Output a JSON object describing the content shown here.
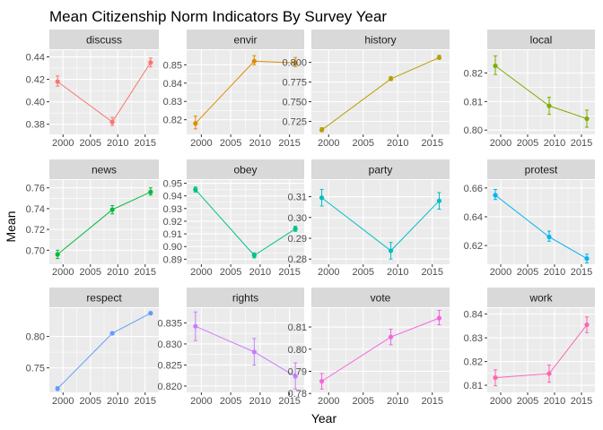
{
  "chart_data": {
    "type": "line",
    "title": "Mean Citizenship Norm Indicators By Survey Year",
    "xlabel": "Year",
    "ylabel": "Mean",
    "x": [
      1999,
      2009,
      2016
    ],
    "xlim": [
      1997.5,
      2017.5
    ],
    "xticks": [
      2000,
      2005,
      2010,
      2015
    ],
    "grid": true,
    "legend": "none",
    "panels": [
      {
        "name": "discuss",
        "color": "#F8766D",
        "ylim": [
          0.371,
          0.446
        ],
        "yticks": [
          0.38,
          0.4,
          0.42,
          0.44
        ],
        "ytick_labels": [
          "0.38",
          "0.40",
          "0.42",
          "0.44"
        ],
        "values": [
          0.418,
          0.382,
          0.435
        ],
        "lower": [
          0.414,
          0.379,
          0.431
        ],
        "upper": [
          0.423,
          0.386,
          0.439
        ]
      },
      {
        "name": "envir",
        "color": "#DE8C00",
        "ylim": [
          0.812,
          0.858
        ],
        "yticks": [
          0.82,
          0.83,
          0.84,
          0.85
        ],
        "ytick_labels": [
          "0.82",
          "0.83",
          "0.84",
          "0.85"
        ],
        "values": [
          0.818,
          0.852,
          0.851
        ],
        "lower": [
          0.815,
          0.85,
          0.849
        ],
        "upper": [
          0.822,
          0.855,
          0.854
        ]
      },
      {
        "name": "history",
        "color": "#B79F00",
        "ylim": [
          0.7085,
          0.8155
        ],
        "yticks": [
          0.725,
          0.75,
          0.775,
          0.8
        ],
        "ytick_labels": [
          "0.725",
          "0.750",
          "0.775",
          "0.800"
        ],
        "values": [
          0.714,
          0.779,
          0.806
        ],
        "lower": [
          0.712,
          0.777,
          0.804
        ],
        "upper": [
          0.717,
          0.782,
          0.809
        ]
      },
      {
        "name": "local",
        "color": "#7CAE00",
        "ylim": [
          0.7985,
          0.828
        ],
        "yticks": [
          0.8,
          0.81,
          0.82
        ],
        "ytick_labels": [
          "0.80",
          "0.81",
          "0.82"
        ],
        "values": [
          0.8225,
          0.8085,
          0.804
        ],
        "lower": [
          0.8195,
          0.8055,
          0.801
        ],
        "upper": [
          0.826,
          0.8115,
          0.807
        ]
      },
      {
        "name": "news",
        "color": "#00BA38",
        "ylim": [
          0.6865,
          0.7675
        ],
        "yticks": [
          0.7,
          0.72,
          0.74,
          0.76
        ],
        "ytick_labels": [
          "0.70",
          "0.72",
          "0.74",
          "0.76"
        ],
        "values": [
          0.696,
          0.739,
          0.756
        ],
        "lower": [
          0.692,
          0.735,
          0.753
        ],
        "upper": [
          0.7,
          0.743,
          0.76
        ]
      },
      {
        "name": "obey",
        "color": "#00C08B",
        "ylim": [
          0.886,
          0.9525
        ],
        "yticks": [
          0.89,
          0.9,
          0.91,
          0.92,
          0.93,
          0.94,
          0.95
        ],
        "ytick_labels": [
          "0.89",
          "0.90",
          "0.91",
          "0.92",
          "0.93",
          "0.94",
          "0.95"
        ],
        "values": [
          0.945,
          0.893,
          0.914
        ],
        "lower": [
          0.943,
          0.891,
          0.912
        ],
        "upper": [
          0.947,
          0.895,
          0.916
        ]
      },
      {
        "name": "party",
        "color": "#00BFC4",
        "ylim": [
          0.2775,
          0.318
        ],
        "yticks": [
          0.28,
          0.29,
          0.3,
          0.31
        ],
        "ytick_labels": [
          "0.28",
          "0.29",
          "0.30",
          "0.31"
        ],
        "values": [
          0.3095,
          0.284,
          0.308
        ],
        "lower": [
          0.3055,
          0.28,
          0.304
        ],
        "upper": [
          0.3135,
          0.288,
          0.312
        ]
      },
      {
        "name": "protest",
        "color": "#00B4F0",
        "ylim": [
          0.607,
          0.6655
        ],
        "yticks": [
          0.62,
          0.64,
          0.66
        ],
        "ytick_labels": [
          "0.62",
          "0.64",
          "0.66"
        ],
        "values": [
          0.655,
          0.626,
          0.611
        ],
        "lower": [
          0.652,
          0.623,
          0.608
        ],
        "upper": [
          0.659,
          0.63,
          0.614
        ]
      },
      {
        "name": "respect",
        "color": "#619CFF",
        "ylim": [
          0.711,
          0.845
        ],
        "yticks": [
          0.75,
          0.8
        ],
        "ytick_labels": [
          "0.75",
          "0.80"
        ],
        "values": [
          0.717,
          0.805,
          0.837
        ],
        "lower": [
          0.714,
          0.803,
          0.835
        ],
        "upper": [
          0.72,
          0.807,
          0.839
        ]
      },
      {
        "name": "rights",
        "color": "#C77CFF",
        "ylim": [
          0.8185,
          0.8385
        ],
        "yticks": [
          0.82,
          0.825,
          0.83,
          0.835
        ],
        "ytick_labels": [
          "0.820",
          "0.825",
          "0.830",
          "0.835"
        ],
        "values": [
          0.8342,
          0.8281,
          0.8223
        ],
        "lower": [
          0.8308,
          0.825,
          0.8193
        ],
        "upper": [
          0.8376,
          0.8313,
          0.8255
        ]
      },
      {
        "name": "vote",
        "color": "#F564E3",
        "ylim": [
          0.7805,
          0.8185
        ],
        "yticks": [
          0.78,
          0.79,
          0.8,
          0.81
        ],
        "ytick_labels": [
          "0.78",
          "0.79",
          "0.80",
          "0.81"
        ],
        "values": [
          0.7855,
          0.8055,
          0.814
        ],
        "lower": [
          0.782,
          0.802,
          0.811
        ],
        "upper": [
          0.789,
          0.809,
          0.8175
        ]
      },
      {
        "name": "work",
        "color": "#FF64B0",
        "ylim": [
          0.807,
          0.8425
        ],
        "yticks": [
          0.81,
          0.82,
          0.83,
          0.84
        ],
        "ytick_labels": [
          "0.81",
          "0.82",
          "0.83",
          "0.84"
        ],
        "values": [
          0.8132,
          0.8149,
          0.8355
        ],
        "lower": [
          0.8098,
          0.8113,
          0.8322
        ],
        "upper": [
          0.8165,
          0.8185,
          0.8388
        ]
      }
    ]
  }
}
